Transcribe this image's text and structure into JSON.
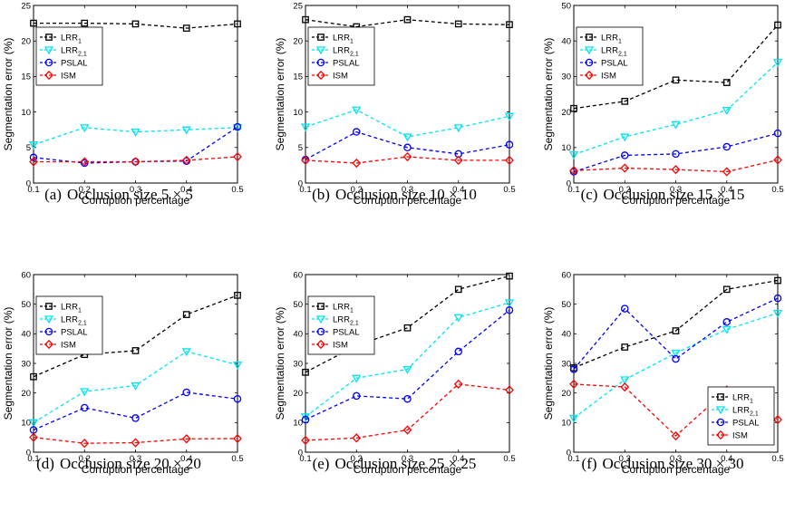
{
  "figure": {
    "panels": [
      {
        "label": "(a)",
        "caption": "Occlusion size 5 × 5"
      },
      {
        "label": "(b)",
        "caption": "Occlusion size 10 × 10"
      },
      {
        "label": "(c)",
        "caption": "Occlusion size 15 × 15"
      },
      {
        "label": "(d)",
        "caption": "Occlusion size 20 × 20"
      },
      {
        "label": "(e)",
        "caption": "Occlusion size 25 × 25"
      },
      {
        "label": "(f)",
        "caption": "Occlusion size 30 × 30"
      }
    ]
  },
  "chart_data": [
    {
      "type": "line",
      "xlabel": "Corruption percentage",
      "ylabel": "Segmentation error (%)",
      "x": [
        0.1,
        0.2,
        0.3,
        0.4,
        0.5
      ],
      "xticks": [
        "0.1",
        "0.2",
        "0.3",
        "0.4",
        "0.5"
      ],
      "ylim": [
        0,
        25
      ],
      "yticks": [
        "0",
        "5",
        "10",
        "15",
        "20",
        "25"
      ],
      "legend_position": "upper-left",
      "series": [
        {
          "name": "LRR",
          "sub": "1",
          "color": "#000000",
          "marker": "square",
          "values": [
            22.5,
            22.5,
            22.4,
            21.8,
            22.4
          ]
        },
        {
          "name": "LRR",
          "sub": "2,1",
          "color": "#00e5ee",
          "marker": "triangle",
          "values": [
            5.4,
            7.8,
            7.2,
            7.5,
            7.8
          ]
        },
        {
          "name": "PSLAL",
          "sub": "",
          "color": "#0000ff",
          "marker": "circle",
          "values": [
            3.6,
            2.8,
            3.0,
            3.1,
            7.9
          ]
        },
        {
          "name": "ISM",
          "sub": "",
          "color": "#ff0000",
          "marker": "diamond",
          "values": [
            3.0,
            3.0,
            3.0,
            3.2,
            3.7
          ]
        }
      ]
    },
    {
      "type": "line",
      "xlabel": "Corruption percentage",
      "ylabel": "Segmentation error (%)",
      "x": [
        0.1,
        0.2,
        0.3,
        0.4,
        0.5
      ],
      "xticks": [
        "0.1",
        "0.2",
        "0.3",
        "0.4",
        "0.5"
      ],
      "ylim": [
        0,
        25
      ],
      "yticks": [
        "0",
        "5",
        "10",
        "15",
        "20",
        "25"
      ],
      "legend_position": "upper-left",
      "series": [
        {
          "name": "LRR",
          "sub": "1",
          "color": "#000000",
          "marker": "square",
          "values": [
            23.0,
            22.0,
            23.0,
            22.4,
            22.3
          ]
        },
        {
          "name": "LRR",
          "sub": "2,1",
          "color": "#00e5ee",
          "marker": "triangle",
          "values": [
            7.9,
            10.3,
            6.5,
            7.8,
            9.4
          ]
        },
        {
          "name": "PSLAL",
          "sub": "",
          "color": "#0000ff",
          "marker": "circle",
          "values": [
            3.3,
            7.2,
            5.0,
            4.1,
            5.4
          ]
        },
        {
          "name": "ISM",
          "sub": "",
          "color": "#ff0000",
          "marker": "diamond",
          "values": [
            3.2,
            2.8,
            3.7,
            3.2,
            3.2
          ]
        }
      ]
    },
    {
      "type": "line",
      "xlabel": "Corruption percentage",
      "ylabel": "Segmentation error (%)",
      "x": [
        0.1,
        0.2,
        0.3,
        0.4,
        0.5
      ],
      "xticks": [
        "0.1",
        "0.2",
        "0.3",
        "0.4",
        "0.5"
      ],
      "ylim": [
        0,
        50
      ],
      "yticks": [
        "0",
        "10",
        "20",
        "30",
        "40",
        "50"
      ],
      "legend_position": "upper-left",
      "series": [
        {
          "name": "LRR",
          "sub": "1",
          "color": "#000000",
          "marker": "square",
          "values": [
            21.0,
            23.0,
            29.0,
            28.3,
            44.5
          ]
        },
        {
          "name": "LRR",
          "sub": "2,1",
          "color": "#00e5ee",
          "marker": "triangle",
          "values": [
            8.0,
            13.0,
            16.5,
            20.5,
            34.0
          ]
        },
        {
          "name": "PSLAL",
          "sub": "",
          "color": "#0000ff",
          "marker": "circle",
          "values": [
            3.2,
            7.8,
            8.2,
            10.2,
            14.0
          ]
        },
        {
          "name": "ISM",
          "sub": "",
          "color": "#ff0000",
          "marker": "diamond",
          "values": [
            3.5,
            4.2,
            3.8,
            3.2,
            6.5
          ]
        }
      ]
    },
    {
      "type": "line",
      "xlabel": "Corruption percentage",
      "ylabel": "Segmentation error (%)",
      "x": [
        0.1,
        0.2,
        0.3,
        0.4,
        0.5
      ],
      "xticks": [
        "0.1",
        "0.2",
        "0.3",
        "0.4",
        "0.5"
      ],
      "ylim": [
        0,
        60
      ],
      "yticks": [
        "0",
        "10",
        "20",
        "30",
        "40",
        "50",
        "60"
      ],
      "legend_position": "upper-left",
      "series": [
        {
          "name": "LRR",
          "sub": "1",
          "color": "#000000",
          "marker": "square",
          "values": [
            25.5,
            33.0,
            34.3,
            46.5,
            53.0
          ]
        },
        {
          "name": "LRR",
          "sub": "2,1",
          "color": "#00e5ee",
          "marker": "triangle",
          "values": [
            10.0,
            20.5,
            22.5,
            34.0,
            29.5
          ]
        },
        {
          "name": "PSLAL",
          "sub": "",
          "color": "#0000ff",
          "marker": "circle",
          "values": [
            7.5,
            15.0,
            11.5,
            20.2,
            18.0
          ]
        },
        {
          "name": "ISM",
          "sub": "",
          "color": "#ff0000",
          "marker": "diamond",
          "values": [
            5.0,
            3.0,
            3.2,
            4.5,
            4.6
          ]
        }
      ]
    },
    {
      "type": "line",
      "xlabel": "Corruption percentage",
      "ylabel": "Segmentation error (%)",
      "x": [
        0.1,
        0.2,
        0.3,
        0.4,
        0.5
      ],
      "xticks": [
        "0.1",
        "0.2",
        "0.3",
        "0.4",
        "0.5"
      ],
      "ylim": [
        0,
        60
      ],
      "yticks": [
        "0",
        "10",
        "20",
        "30",
        "40",
        "50",
        "60"
      ],
      "legend_position": "upper-left",
      "series": [
        {
          "name": "LRR",
          "sub": "1",
          "color": "#000000",
          "marker": "square",
          "values": [
            27.0,
            36.0,
            42.0,
            55.0,
            59.5
          ]
        },
        {
          "name": "LRR",
          "sub": "2,1",
          "color": "#00e5ee",
          "marker": "triangle",
          "values": [
            12.0,
            25.0,
            28.0,
            45.5,
            50.5
          ]
        },
        {
          "name": "PSLAL",
          "sub": "",
          "color": "#0000ff",
          "marker": "circle",
          "values": [
            11.0,
            19.0,
            18.0,
            34.0,
            48.0
          ]
        },
        {
          "name": "ISM",
          "sub": "",
          "color": "#ff0000",
          "marker": "diamond",
          "values": [
            4.0,
            4.8,
            7.5,
            23.0,
            21.0
          ]
        }
      ]
    },
    {
      "type": "line",
      "xlabel": "Corruption percentage",
      "ylabel": "Segmentation error (%)",
      "x": [
        0.1,
        0.2,
        0.3,
        0.4,
        0.5
      ],
      "xticks": [
        "0.1",
        "0.2",
        "0.3",
        "0.4",
        "0.5"
      ],
      "ylim": [
        0,
        60
      ],
      "yticks": [
        "0",
        "10",
        "20",
        "30",
        "40",
        "50",
        "60"
      ],
      "legend_position": "lower-right",
      "series": [
        {
          "name": "LRR",
          "sub": "1",
          "color": "#000000",
          "marker": "square",
          "values": [
            28.5,
            35.5,
            41.0,
            55.0,
            58.0
          ]
        },
        {
          "name": "LRR",
          "sub": "2,1",
          "color": "#00e5ee",
          "marker": "triangle",
          "values": [
            11.5,
            24.5,
            33.5,
            41.5,
            47.0
          ]
        },
        {
          "name": "PSLAL",
          "sub": "",
          "color": "#0000ff",
          "marker": "circle",
          "values": [
            28.0,
            48.5,
            31.5,
            44.0,
            52.0
          ]
        },
        {
          "name": "ISM",
          "sub": "",
          "color": "#ff0000",
          "marker": "diamond",
          "values": [
            23.0,
            22.0,
            5.5,
            21.0,
            11.0
          ]
        }
      ]
    }
  ]
}
